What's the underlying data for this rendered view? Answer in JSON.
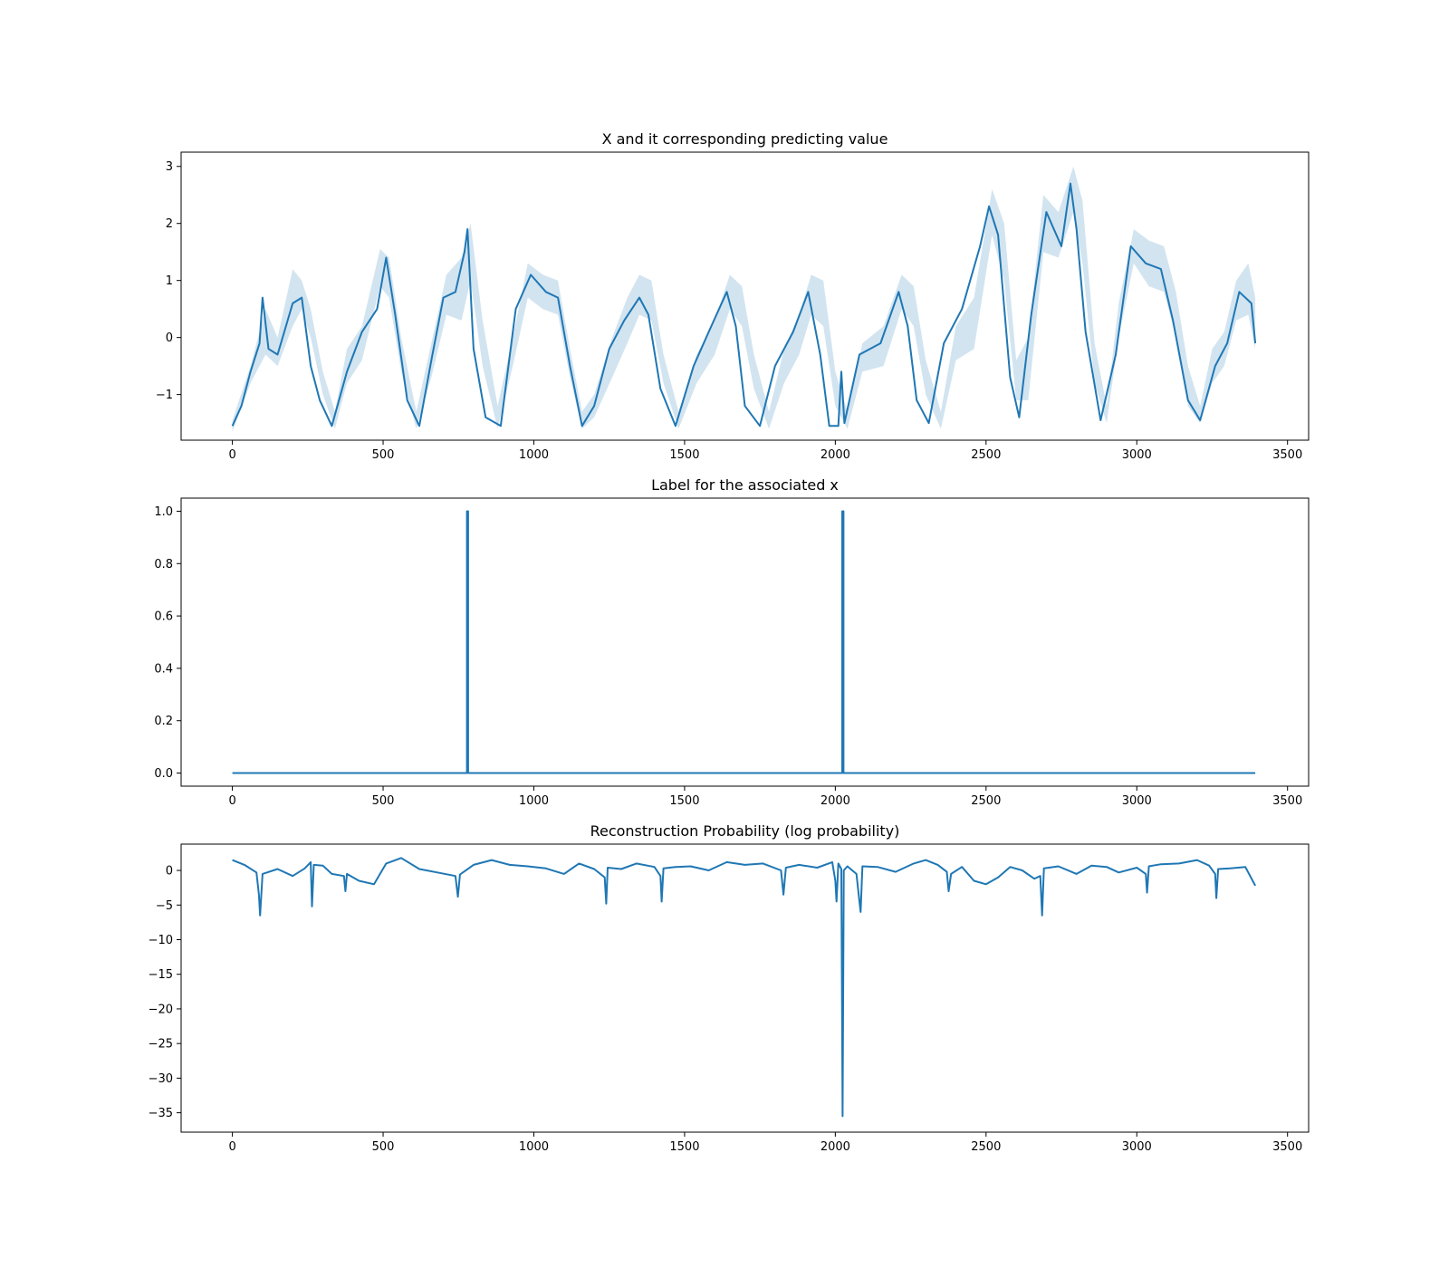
{
  "chart_data": [
    {
      "type": "line",
      "title": "X and it corresponding predicting value",
      "xlabel": "",
      "ylabel": "",
      "xlim": [
        -170,
        3570
      ],
      "ylim": [
        -1.8,
        3.25
      ],
      "xticks": [
        0,
        500,
        1000,
        1500,
        2000,
        2500,
        3000,
        3500
      ],
      "yticks": [
        -1,
        0,
        1,
        2,
        3
      ],
      "grid": false,
      "colors": {
        "line": "#1f77b4",
        "band": "#1f77b4"
      },
      "series": [
        {
          "kind": "line",
          "x": [
            0,
            30,
            60,
            90,
            100,
            120,
            150,
            200,
            230,
            260,
            290,
            330,
            380,
            430,
            480,
            510,
            540,
            580,
            620,
            660,
            700,
            740,
            770,
            780,
            800,
            840,
            890,
            940,
            990,
            1040,
            1080,
            1120,
            1160,
            1200,
            1250,
            1300,
            1350,
            1380,
            1420,
            1470,
            1530,
            1580,
            1640,
            1670,
            1700,
            1750,
            1800,
            1860,
            1910,
            1950,
            1980,
            2010,
            2020,
            2030,
            2080,
            2150,
            2210,
            2240,
            2270,
            2310,
            2360,
            2420,
            2480,
            2510,
            2540,
            2580,
            2610,
            2650,
            2700,
            2750,
            2780,
            2800,
            2830,
            2880,
            2930,
            2980,
            3030,
            3080,
            3120,
            3170,
            3210,
            3260,
            3300,
            3340,
            3380,
            3393
          ],
          "y": [
            -1.55,
            -1.2,
            -0.6,
            -0.1,
            0.7,
            -0.2,
            -0.3,
            0.6,
            0.7,
            -0.5,
            -1.1,
            -1.55,
            -0.6,
            0.1,
            0.5,
            1.4,
            0.4,
            -1.1,
            -1.55,
            -0.4,
            0.7,
            0.8,
            1.5,
            1.9,
            -0.2,
            -1.4,
            -1.55,
            0.5,
            1.1,
            0.8,
            0.7,
            -0.5,
            -1.55,
            -1.2,
            -0.2,
            0.3,
            0.7,
            0.4,
            -0.9,
            -1.55,
            -0.5,
            0.1,
            0.8,
            0.2,
            -1.2,
            -1.55,
            -0.5,
            0.1,
            0.8,
            -0.3,
            -1.55,
            -1.55,
            -0.6,
            -1.5,
            -0.3,
            -0.1,
            0.8,
            0.2,
            -1.1,
            -1.5,
            -0.1,
            0.5,
            1.6,
            2.3,
            1.8,
            -0.7,
            -1.4,
            0.4,
            2.2,
            1.6,
            2.7,
            1.9,
            0.1,
            -1.45,
            -0.3,
            1.6,
            1.3,
            1.2,
            0.3,
            -1.1,
            -1.45,
            -0.5,
            -0.1,
            0.8,
            0.6,
            -0.1
          ]
        },
        {
          "kind": "band",
          "x": [
            0,
            60,
            110,
            150,
            200,
            230,
            260,
            300,
            340,
            380,
            430,
            490,
            520,
            560,
            610,
            660,
            710,
            760,
            790,
            830,
            880,
            930,
            980,
            1030,
            1080,
            1120,
            1160,
            1200,
            1260,
            1310,
            1350,
            1390,
            1430,
            1480,
            1540,
            1600,
            1650,
            1690,
            1730,
            1780,
            1830,
            1880,
            1920,
            1960,
            2000,
            2040,
            2090,
            2160,
            2220,
            2260,
            2300,
            2350,
            2400,
            2460,
            2520,
            2560,
            2600,
            2640,
            2690,
            2740,
            2790,
            2820,
            2860,
            2900,
            2940,
            2990,
            3040,
            3090,
            3130,
            3170,
            3210,
            3250,
            3290,
            3330,
            3370,
            3393
          ],
          "y_lower": [
            -1.65,
            -0.8,
            -0.3,
            -0.5,
            0.2,
            0.5,
            0.0,
            -1.0,
            -1.6,
            -0.8,
            -0.4,
            0.9,
            0.7,
            -0.6,
            -1.6,
            -0.7,
            0.4,
            0.3,
            1.0,
            -0.5,
            -1.6,
            -0.5,
            0.7,
            0.5,
            0.4,
            -0.7,
            -1.6,
            -1.4,
            -0.7,
            -0.1,
            0.4,
            0.3,
            -0.8,
            -1.6,
            -0.8,
            -0.3,
            0.5,
            0.2,
            -0.9,
            -1.6,
            -0.8,
            -0.3,
            0.4,
            0.2,
            -1.2,
            -1.6,
            -0.6,
            -0.5,
            0.5,
            0.2,
            -1.0,
            -1.6,
            -0.4,
            -0.2,
            1.8,
            1.0,
            -1.1,
            -1.1,
            1.5,
            1.4,
            2.2,
            1.3,
            -0.8,
            -1.5,
            0.0,
            1.3,
            0.9,
            0.8,
            0.0,
            -1.2,
            -1.5,
            -0.8,
            -0.5,
            0.3,
            0.4,
            -0.2
          ],
          "y_upper": [
            -1.45,
            -0.5,
            0.5,
            0.0,
            1.2,
            1.0,
            0.5,
            -0.6,
            -1.3,
            -0.2,
            0.2,
            1.55,
            1.4,
            0.0,
            -1.3,
            -0.1,
            1.1,
            1.4,
            2.0,
            0.3,
            -1.2,
            0.0,
            1.3,
            1.1,
            1.0,
            -0.2,
            -1.3,
            -1.0,
            0.0,
            0.7,
            1.1,
            1.0,
            -0.3,
            -1.3,
            -0.3,
            0.3,
            1.1,
            0.9,
            -0.3,
            -1.3,
            -0.2,
            0.4,
            1.1,
            1.0,
            -0.6,
            -1.3,
            -0.1,
            0.2,
            1.1,
            0.9,
            -0.4,
            -1.3,
            0.2,
            0.7,
            2.6,
            2.0,
            -0.4,
            0.0,
            2.5,
            2.2,
            3.0,
            2.4,
            -0.1,
            -1.2,
            0.6,
            1.9,
            1.7,
            1.6,
            0.8,
            -0.5,
            -1.2,
            -0.2,
            0.1,
            1.0,
            1.3,
            0.7
          ]
        }
      ]
    },
    {
      "type": "line",
      "title": "Label for the associated x",
      "xlabel": "",
      "ylabel": "",
      "xlim": [
        -170,
        3570
      ],
      "ylim": [
        -0.05,
        1.05
      ],
      "xticks": [
        0,
        500,
        1000,
        1500,
        2000,
        2500,
        3000,
        3500
      ],
      "yticks": [
        0.0,
        0.2,
        0.4,
        0.6,
        0.8,
        1.0
      ],
      "ytick_labels": [
        "0.0",
        "0.2",
        "0.4",
        "0.6",
        "0.8",
        "1.0"
      ],
      "grid": false,
      "colors": {
        "line": "#1f77b4"
      },
      "series": [
        {
          "kind": "line",
          "x": [
            0,
            778,
            778,
            782,
            782,
            2023,
            2023,
            2027,
            2027,
            3393
          ],
          "y": [
            0,
            0,
            1,
            1,
            0,
            0,
            1,
            1,
            0,
            0
          ]
        }
      ]
    },
    {
      "type": "line",
      "title": "Reconstruction Probability (log probability)",
      "xlabel": "",
      "ylabel": "",
      "xlim": [
        -170,
        3570
      ],
      "ylim": [
        -37.8,
        3.8
      ],
      "xticks": [
        0,
        500,
        1000,
        1500,
        2000,
        2500,
        3000,
        3500
      ],
      "yticks": [
        -35,
        -30,
        -25,
        -20,
        -15,
        -10,
        -5,
        0
      ],
      "grid": false,
      "colors": {
        "line": "#1f77b4"
      },
      "series": [
        {
          "kind": "line",
          "x": [
            0,
            40,
            80,
            88,
            92,
            100,
            150,
            200,
            240,
            260,
            264,
            270,
            300,
            330,
            370,
            375,
            380,
            420,
            470,
            510,
            560,
            620,
            680,
            740,
            748,
            755,
            800,
            860,
            920,
            980,
            1040,
            1100,
            1150,
            1200,
            1235,
            1240,
            1245,
            1290,
            1340,
            1400,
            1420,
            1424,
            1430,
            1470,
            1520,
            1580,
            1640,
            1700,
            1760,
            1820,
            1828,
            1836,
            1880,
            1940,
            1990,
            2000,
            2004,
            2010,
            2020,
            2024,
            2028,
            2040,
            2070,
            2080,
            2084,
            2090,
            2140,
            2200,
            2260,
            2300,
            2340,
            2370,
            2376,
            2384,
            2420,
            2460,
            2500,
            2540,
            2580,
            2620,
            2660,
            2680,
            2686,
            2692,
            2740,
            2800,
            2850,
            2900,
            2940,
            3000,
            3030,
            3034,
            3040,
            3080,
            3140,
            3200,
            3240,
            3260,
            3264,
            3270,
            3310,
            3360,
            3393
          ],
          "y": [
            1.5,
            0.8,
            -0.3,
            -3.5,
            -6.5,
            -0.5,
            0.2,
            -0.8,
            0.3,
            1.2,
            -5.2,
            0.8,
            0.7,
            -0.5,
            -0.8,
            -3.0,
            -0.5,
            -1.5,
            -2.0,
            1.0,
            1.8,
            0.2,
            -0.3,
            -0.8,
            -3.8,
            -0.6,
            0.8,
            1.5,
            0.8,
            0.6,
            0.3,
            -0.5,
            1.0,
            0.2,
            -1.0,
            -4.8,
            0.4,
            0.2,
            1.0,
            0.5,
            -0.8,
            -4.5,
            0.3,
            0.5,
            0.6,
            0.0,
            1.2,
            0.8,
            1.0,
            0.0,
            -3.5,
            0.4,
            0.8,
            0.4,
            1.2,
            -1.5,
            -4.5,
            1.0,
            0.2,
            -35.5,
            0.0,
            0.6,
            -0.5,
            -4.5,
            -6.0,
            0.6,
            0.5,
            -0.2,
            1.0,
            1.5,
            0.8,
            -0.2,
            -3.0,
            -0.5,
            0.5,
            -1.5,
            -2.0,
            -1.0,
            0.5,
            0.0,
            -1.2,
            -0.8,
            -6.5,
            0.3,
            0.6,
            -0.5,
            0.7,
            0.5,
            -0.3,
            0.4,
            -0.5,
            -3.2,
            0.6,
            0.9,
            1.0,
            1.5,
            0.7,
            -0.5,
            -4.0,
            0.2,
            0.3,
            0.5,
            -2.2
          ]
        }
      ]
    }
  ]
}
